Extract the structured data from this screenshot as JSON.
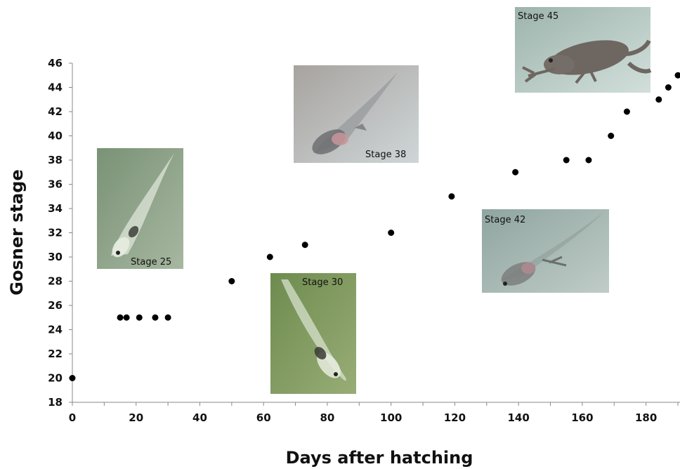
{
  "chart_data": {
    "type": "scatter",
    "title": "",
    "xlabel": "Days after hatching",
    "ylabel": "Gosner stage",
    "xlim": [
      0,
      190
    ],
    "ylim": [
      18,
      46
    ],
    "xticks": [
      0,
      20,
      40,
      60,
      80,
      100,
      120,
      140,
      160,
      180
    ],
    "yticks": [
      18,
      20,
      22,
      24,
      26,
      28,
      30,
      32,
      34,
      36,
      38,
      40,
      42,
      44,
      46
    ],
    "grid": false,
    "legend": "none",
    "marker_color": "#000000",
    "points": [
      {
        "x": 0,
        "y": 20
      },
      {
        "x": 15,
        "y": 25
      },
      {
        "x": 17,
        "y": 25
      },
      {
        "x": 21,
        "y": 25
      },
      {
        "x": 26,
        "y": 25
      },
      {
        "x": 30,
        "y": 25
      },
      {
        "x": 50,
        "y": 28
      },
      {
        "x": 62,
        "y": 30
      },
      {
        "x": 73,
        "y": 31
      },
      {
        "x": 100,
        "y": 32
      },
      {
        "x": 119,
        "y": 35
      },
      {
        "x": 139,
        "y": 37
      },
      {
        "x": 155,
        "y": 38
      },
      {
        "x": 162,
        "y": 38
      },
      {
        "x": 169,
        "y": 40
      },
      {
        "x": 174,
        "y": 42
      },
      {
        "x": 184,
        "y": 43
      },
      {
        "x": 187,
        "y": 44
      },
      {
        "x": 190,
        "y": 45
      }
    ],
    "insets": [
      {
        "label": "Stage 25",
        "subject": "tadpole",
        "bg": "#8fa48a"
      },
      {
        "label": "Stage 30",
        "subject": "tadpole",
        "bg": "#7f9a5e"
      },
      {
        "label": "Stage 38",
        "subject": "tadpole-hindlimb",
        "bg": "#b9c2c4"
      },
      {
        "label": "Stage 42",
        "subject": "tadpole-legs",
        "bg": "#a6b6b1"
      },
      {
        "label": "Stage 45",
        "subject": "froglet",
        "bg": "#b4c9c3"
      }
    ]
  }
}
